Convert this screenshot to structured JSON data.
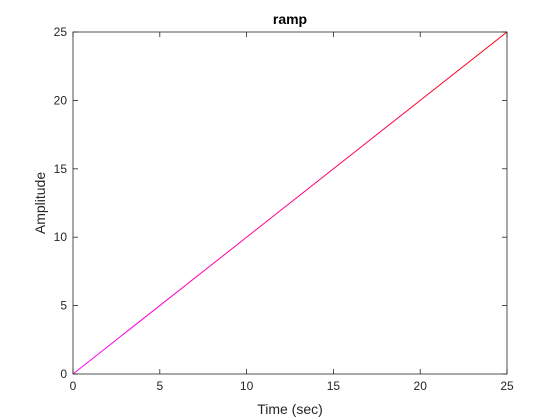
{
  "chart_data": {
    "type": "line",
    "title": "ramp",
    "xlabel": "Time (sec)",
    "ylabel": "Amplitude",
    "xlim": [
      0,
      25
    ],
    "ylim": [
      0,
      25
    ],
    "xticks": [
      0,
      5,
      10,
      15,
      20,
      25
    ],
    "yticks": [
      0,
      5,
      10,
      15,
      20,
      25
    ],
    "xtick_labels": [
      "0",
      "5",
      "10",
      "15",
      "20",
      "25"
    ],
    "ytick_labels": [
      "0",
      "5",
      "10",
      "15",
      "20",
      "25"
    ],
    "grid": false,
    "box": true,
    "series": [
      {
        "name": "ramp",
        "x": [
          0,
          25
        ],
        "y": [
          0,
          25
        ],
        "color_start": "#ff00ff",
        "color_end": "#ff0000"
      }
    ],
    "axis_color": "#262626"
  }
}
